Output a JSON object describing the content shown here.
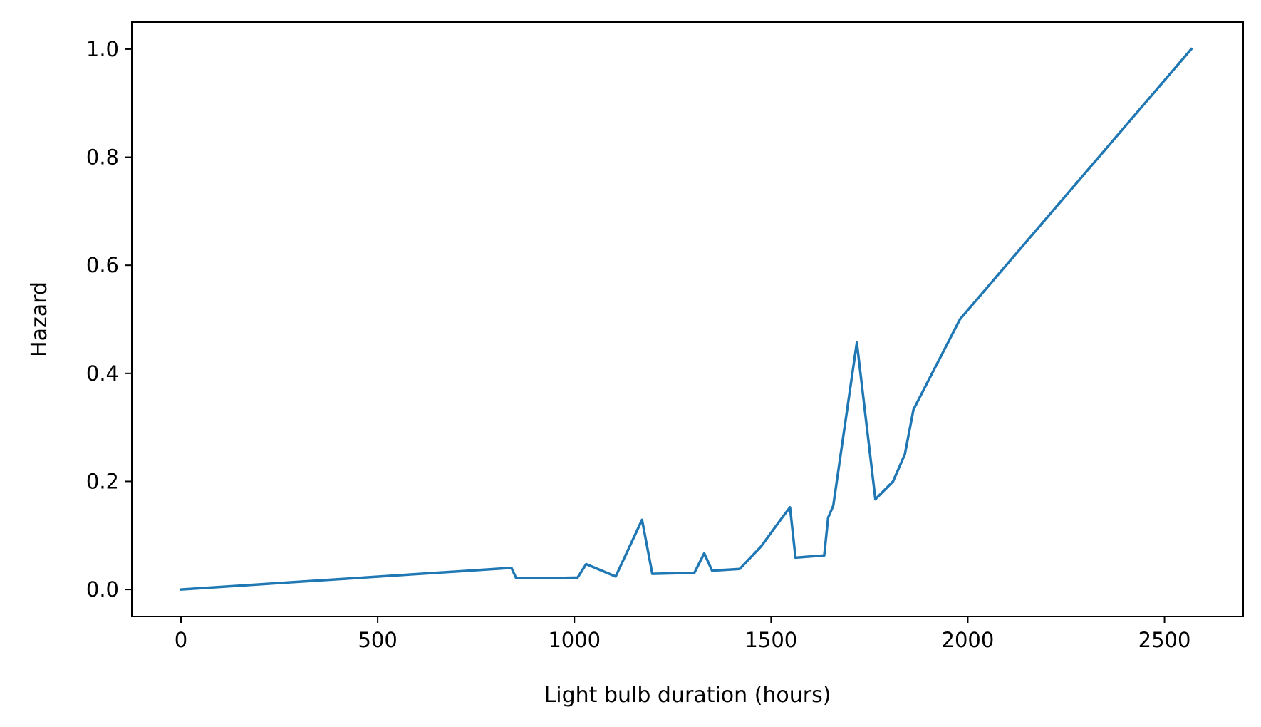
{
  "chart_data": {
    "type": "line",
    "title": "",
    "xlabel": "Light bulb duration (hours)",
    "ylabel": "Hazard",
    "xlim": [
      -125,
      2700
    ],
    "ylim": [
      -0.05,
      1.05
    ],
    "xticks": [
      0,
      500,
      1000,
      1500,
      2000,
      2500
    ],
    "xtick_labels": [
      "0",
      "500",
      "1000",
      "1500",
      "2000",
      "2500"
    ],
    "yticks": [
      0.0,
      0.2,
      0.4,
      0.6,
      0.8,
      1.0
    ],
    "ytick_labels": [
      "0.0",
      "0.2",
      "0.4",
      "0.6",
      "0.8",
      "1.0"
    ],
    "grid": false,
    "legend": "none",
    "series": [
      {
        "color": "#1f77b4",
        "x": [
          0,
          840,
          852,
          930,
          1008,
          1030,
          1105,
          1172,
          1198,
          1305,
          1330,
          1350,
          1420,
          1475,
          1525,
          1548,
          1562,
          1635,
          1645,
          1658,
          1718,
          1765,
          1810,
          1840,
          1862,
          1980,
          2568
        ],
        "y": [
          0.0,
          0.04,
          0.021,
          0.021,
          0.022,
          0.047,
          0.024,
          0.129,
          0.029,
          0.031,
          0.067,
          0.035,
          0.038,
          0.08,
          0.13,
          0.152,
          0.059,
          0.063,
          0.133,
          0.155,
          0.457,
          0.167,
          0.2,
          0.25,
          0.333,
          0.5,
          1.0
        ]
      }
    ]
  }
}
